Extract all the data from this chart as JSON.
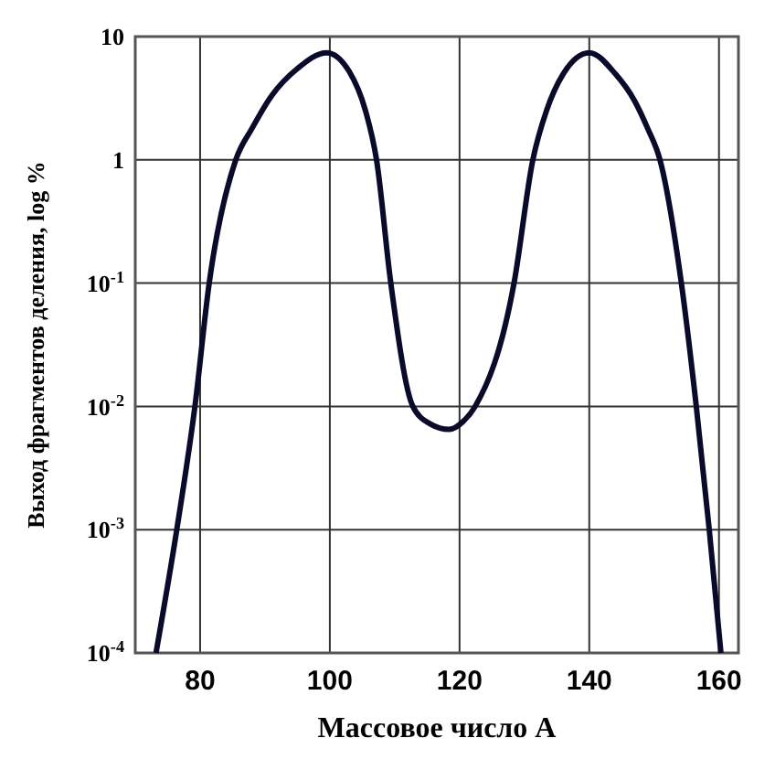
{
  "chart_data": {
    "type": "line",
    "xlabel": "Массовое число А",
    "ylabel": "Выход фрагментов деления, log %",
    "log": "y",
    "grid": true,
    "marker": "none",
    "line_style": "solid",
    "xlim": [
      70,
      163
    ],
    "xticks": [
      80,
      100,
      120,
      140,
      160
    ],
    "ylim": [
      0.0001,
      10
    ],
    "yticks": [
      {
        "value": 0.0001,
        "label": "10$^{-4}$"
      },
      {
        "value": 0.001,
        "label": "10$^{-3}$"
      },
      {
        "value": 0.01,
        "label": "10$^{-2}$"
      },
      {
        "value": 0.1,
        "label": "10$^{-1}$"
      },
      1,
      10
    ],
    "series": [
      {
        "color": "#0a0a2a",
        "x": [
          73.2,
          76.4,
          79.2,
          81.4,
          85.5,
          88,
          91,
          95,
          99.5,
          103,
          105.5,
          107.2,
          109.4,
          112.8,
          115.5,
          118.4,
          120.5,
          122.4,
          128.4,
          131.3,
          133.4,
          136,
          140,
          144,
          147,
          149,
          150.9,
          154.2,
          156.5,
          158.5,
          160.3
        ],
        "values": [
          0.0001,
          0.001,
          0.01,
          0.1,
          1,
          1.8,
          3.3,
          5.5,
          7.4,
          5.2,
          2.5,
          1,
          0.1,
          0.01,
          0.0072,
          0.0065,
          0.0075,
          0.01,
          0.1,
          1,
          2.5,
          5,
          7.4,
          5,
          3,
          1.8,
          1,
          0.1,
          0.01,
          0.001,
          0.0001
        ]
      }
    ]
  }
}
